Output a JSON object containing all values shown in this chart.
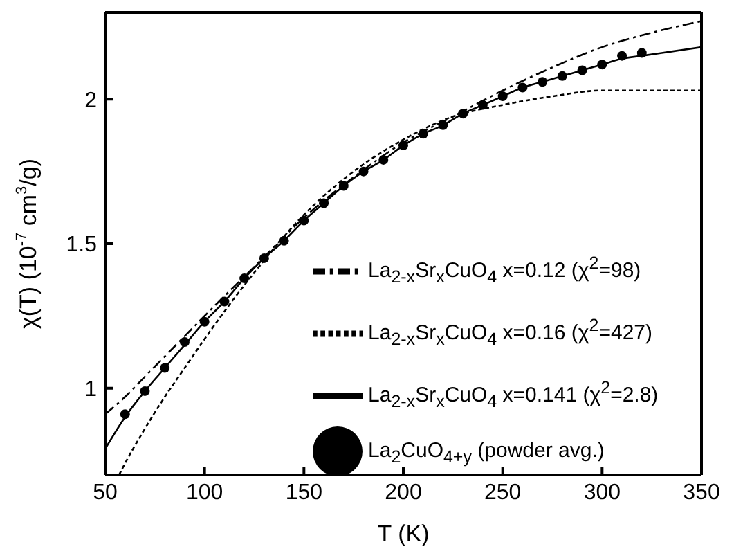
{
  "chart_data": {
    "type": "line",
    "xlabel": "T (K)",
    "ylabel": "χ(T) (10$^{-7}$ cm$^{3}$/g)",
    "xlim": [
      50,
      350
    ],
    "xticks": [
      50,
      100,
      150,
      200,
      250,
      300,
      350
    ],
    "ylim": [
      0.7,
      2.3
    ],
    "yticks": [
      1,
      1.5,
      2
    ],
    "grid": false,
    "legend": "bottom right",
    "series": [
      {
        "name": "La$_{2}$CuO$_{4+y}$     (powder avg.)",
        "type": "scatter",
        "marker": "circle",
        "color": "#000000",
        "x": [
          60,
          70,
          80,
          90,
          100,
          110,
          120,
          130,
          140,
          150,
          160,
          170,
          180,
          190,
          200,
          210,
          220,
          230,
          240,
          250,
          260,
          270,
          280,
          290,
          300,
          310,
          320
        ],
        "values": [
          0.91,
          0.99,
          1.07,
          1.16,
          1.23,
          1.3,
          1.38,
          1.45,
          1.51,
          1.58,
          1.64,
          1.7,
          1.75,
          1.79,
          1.84,
          1.88,
          1.91,
          1.95,
          1.98,
          2.01,
          2.04,
          2.06,
          2.08,
          2.1,
          2.12,
          2.15,
          2.16
        ]
      },
      {
        "name": "La$_{2-x}$Sr$_{x}$CuO$_{4}$  x=0.141 (χ$^{2}$=2.8)",
        "line_style": "solid",
        "marker": "none",
        "color": "#000000",
        "x": [
          50,
          60,
          70,
          80,
          90,
          100,
          110,
          120,
          130,
          140,
          150,
          160,
          170,
          180,
          190,
          200,
          210,
          220,
          230,
          240,
          250,
          260,
          270,
          280,
          290,
          300,
          310,
          320,
          330,
          340,
          350
        ],
        "values": [
          0.79,
          0.9,
          0.99,
          1.07,
          1.15,
          1.23,
          1.3,
          1.38,
          1.45,
          1.51,
          1.58,
          1.64,
          1.7,
          1.75,
          1.79,
          1.84,
          1.88,
          1.91,
          1.95,
          1.98,
          2.01,
          2.04,
          2.06,
          2.08,
          2.1,
          2.12,
          2.14,
          2.15,
          2.16,
          2.17,
          2.18
        ]
      },
      {
        "name": "La$_{2-x}$Sr$_{x}$CuO$_{4}$   x=0.12 (χ$^{2}$=98)",
        "line_style": "dashed",
        "marker": "none",
        "color": "#000000",
        "x": [
          50,
          60,
          70,
          80,
          90,
          100,
          125,
          150,
          175,
          200,
          225,
          250,
          275,
          300,
          325,
          350
        ],
        "values": [
          0.91,
          0.97,
          1.04,
          1.11,
          1.18,
          1.25,
          1.42,
          1.59,
          1.73,
          1.85,
          1.94,
          2.03,
          2.11,
          2.18,
          2.23,
          2.27
        ]
      },
      {
        "name": "La$_{2-x}$Sr$_{x}$CuO$_{4}$   x=0.16 (χ$^{2}$=427)",
        "line_style": "dotted",
        "marker": "none",
        "color": "#000000",
        "x": [
          57,
          60,
          70,
          80,
          90,
          100,
          125,
          150,
          175,
          200,
          225,
          250,
          275,
          300,
          325,
          350
        ],
        "values": [
          0.7,
          0.74,
          0.86,
          0.97,
          1.07,
          1.17,
          1.4,
          1.6,
          1.75,
          1.86,
          1.94,
          1.98,
          2.01,
          2.03,
          2.03,
          2.03
        ]
      }
    ]
  }
}
